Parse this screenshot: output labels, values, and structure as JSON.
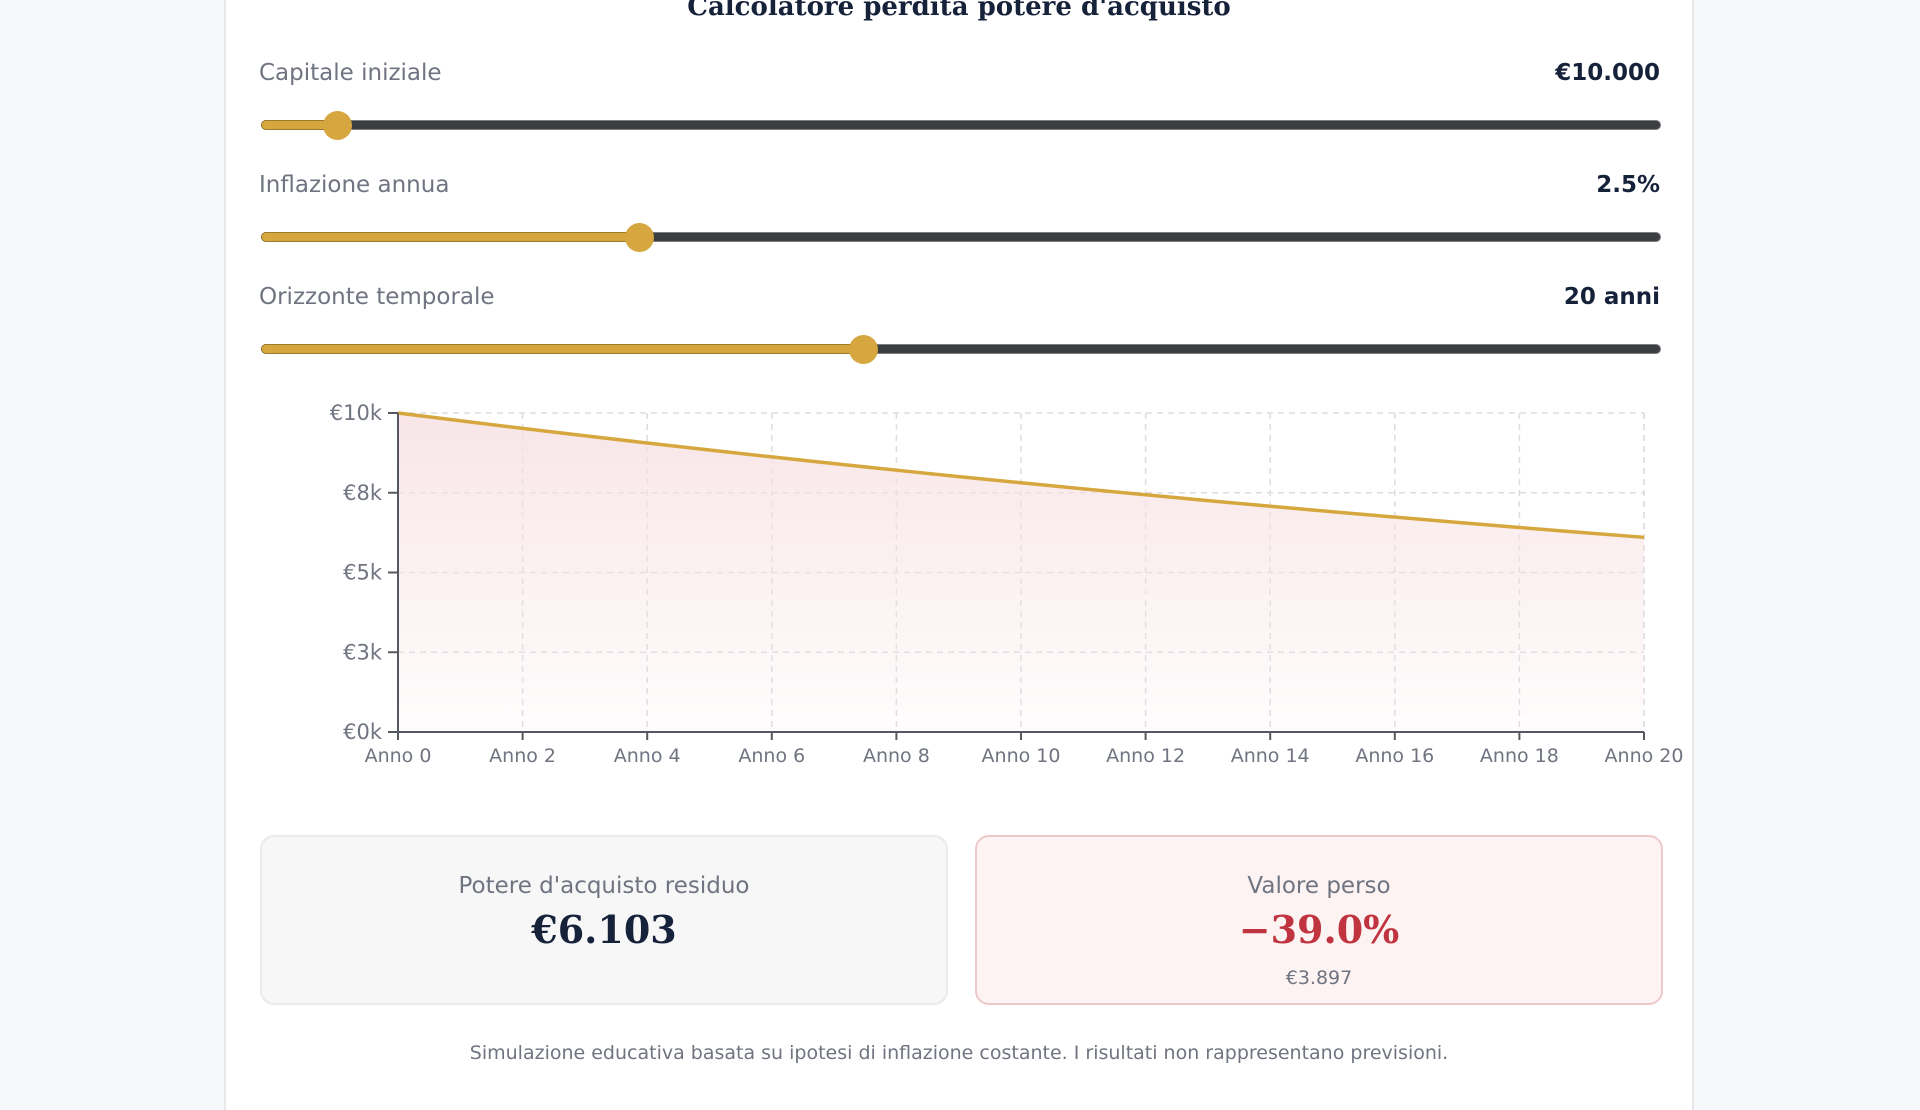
{
  "title": "Calcolatore perdita potere d'acquisto",
  "controls": [
    {
      "label": "Capitale iniziale",
      "value": "€10.000",
      "fraction": 0.054
    },
    {
      "label": "Inflazione annua",
      "value": "2.5%",
      "fraction": 0.27
    },
    {
      "label": "Orizzonte temporale",
      "value": "20 anni",
      "fraction": 0.43
    }
  ],
  "chart_data": {
    "type": "area",
    "x": [
      0,
      1,
      2,
      3,
      4,
      5,
      6,
      7,
      8,
      9,
      10,
      11,
      12,
      13,
      14,
      15,
      16,
      17,
      18,
      19,
      20
    ],
    "series": [
      {
        "values": [
          10000,
          9756,
          9518,
          9286,
          9060,
          8839,
          8623,
          8413,
          8207,
          8007,
          7812,
          7621,
          7436,
          7254,
          7077,
          6905,
          6736,
          6572,
          6412,
          6255,
          6103
        ]
      }
    ],
    "x_tick_labels": [
      "Anno 0",
      "Anno 2",
      "Anno 4",
      "Anno 6",
      "Anno 8",
      "Anno 10",
      "Anno 12",
      "Anno 14",
      "Anno 16",
      "Anno 18",
      "Anno 20"
    ],
    "x_ticks": [
      0,
      2,
      4,
      6,
      8,
      10,
      12,
      14,
      16,
      18,
      20
    ],
    "y_tick_labels": [
      "€0k",
      "€3k",
      "€5k",
      "€8k",
      "€10k"
    ],
    "y_ticks": [
      0,
      2500,
      5000,
      7500,
      10000
    ],
    "xlim": [
      0,
      20
    ],
    "ylim": [
      0,
      10000
    ],
    "grid": true,
    "line_color": "#d6a73e",
    "fill_color": "#f7e1e3"
  },
  "stats": {
    "residual_label": "Potere d'acquisto residuo",
    "residual_value": "€6.103",
    "lost_label": "Valore perso",
    "lost_percent": "−39.0%",
    "lost_amount": "€3.897"
  },
  "footnote": "Simulazione educativa basata su ipotesi di inflazione costante. I risultati non rappresentano previsioni.",
  "colors": {
    "accent": "#d6a73e",
    "title": "#16213a",
    "loss": "#c0343f"
  }
}
